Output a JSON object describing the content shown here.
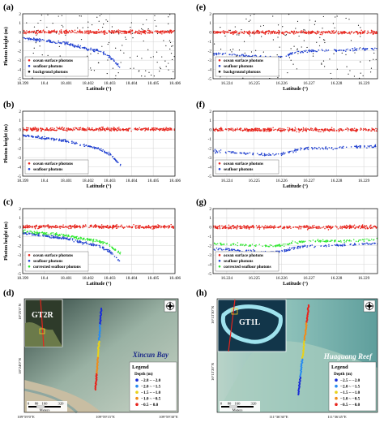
{
  "chart_data": [
    {
      "panel": "(a)",
      "type": "scatter",
      "ylabel": "Photon height (m)",
      "xlabel": "Latitude (°)",
      "xlim": [
        18.399,
        18.406
      ],
      "ylim": [
        -5,
        2
      ],
      "xticks": [
        "18.399",
        "18.4",
        "18.401",
        "18.402",
        "18.403",
        "18.404",
        "18.405",
        "18.406"
      ],
      "yticks": [
        "2",
        "1",
        "0",
        "-1",
        "-2",
        "-3",
        "-4",
        "-5"
      ],
      "grid": true,
      "legend_position": "bottom-left",
      "series": [
        {
          "name": "ocean surface photons",
          "color": "#e8251d",
          "kind": "surface",
          "x_range": [
            18.399,
            18.406
          ],
          "mean": 0.05
        },
        {
          "name": "seafloor photons",
          "color": "#1f3fcf",
          "kind": "seafloor",
          "points": [
            [
              18.399,
              -0.6
            ],
            [
              18.4,
              -0.9
            ],
            [
              18.401,
              -1.2
            ],
            [
              18.402,
              -1.8
            ],
            [
              18.4025,
              -2.0
            ],
            [
              18.403,
              -2.6
            ],
            [
              18.4035,
              -3.8
            ]
          ]
        },
        {
          "name": "backgroud photons",
          "color": "#111111",
          "kind": "background",
          "y_range": [
            -5,
            2
          ]
        }
      ]
    },
    {
      "panel": "(b)",
      "type": "scatter",
      "ylabel": "Photon height (m)",
      "xlabel": "Latitude (°)",
      "xlim": [
        18.399,
        18.406
      ],
      "ylim": [
        -5,
        2
      ],
      "xticks": [
        "18.399",
        "18.4",
        "18.401",
        "18.402",
        "18.403",
        "18.404",
        "18.405",
        "18.406"
      ],
      "yticks": [
        "2",
        "1",
        "0",
        "-1",
        "-2",
        "-3",
        "-4",
        "-5"
      ],
      "grid": true,
      "legend_position": "bottom-left",
      "series": [
        {
          "name": "ocean surface photons",
          "color": "#e8251d",
          "kind": "surface",
          "x_range": [
            18.399,
            18.406
          ],
          "mean": 0.05
        },
        {
          "name": "seafloor photons",
          "color": "#1f3fcf",
          "kind": "seafloor",
          "points": [
            [
              18.399,
              -0.6
            ],
            [
              18.4,
              -0.9
            ],
            [
              18.401,
              -1.2
            ],
            [
              18.402,
              -1.8
            ],
            [
              18.4025,
              -2.0
            ],
            [
              18.403,
              -2.6
            ],
            [
              18.4035,
              -3.8
            ]
          ]
        }
      ]
    },
    {
      "panel": "(c)",
      "type": "scatter",
      "ylabel": "Photon height (m)",
      "xlabel": "Latitude (°)",
      "xlim": [
        18.399,
        18.406
      ],
      "ylim": [
        -5,
        2
      ],
      "xticks": [
        "18.399",
        "18.4",
        "18.401",
        "18.402",
        "18.403",
        "18.404",
        "18.405",
        "18.406"
      ],
      "yticks": [
        "2",
        "1",
        "0",
        "-1",
        "-2",
        "-3",
        "-4",
        "-5"
      ],
      "grid": true,
      "legend_position": "bottom-left",
      "series": [
        {
          "name": "ocean surface photons",
          "color": "#e8251d",
          "kind": "surface",
          "x_range": [
            18.399,
            18.406
          ],
          "mean": 0.05
        },
        {
          "name": "seafloor photons",
          "color": "#1f3fcf",
          "kind": "seafloor",
          "points": [
            [
              18.399,
              -0.6
            ],
            [
              18.4,
              -0.9
            ],
            [
              18.401,
              -1.2
            ],
            [
              18.402,
              -1.8
            ],
            [
              18.4025,
              -2.0
            ],
            [
              18.403,
              -2.6
            ],
            [
              18.4035,
              -3.8
            ]
          ]
        },
        {
          "name": "corrected seafloor photons",
          "color": "#2ee82e",
          "kind": "corrected",
          "points": [
            [
              18.399,
              -0.45
            ],
            [
              18.4,
              -0.68
            ],
            [
              18.401,
              -0.9
            ],
            [
              18.402,
              -1.35
            ],
            [
              18.4025,
              -1.5
            ],
            [
              18.403,
              -1.95
            ],
            [
              18.4035,
              -2.85
            ]
          ]
        }
      ]
    },
    {
      "panel": "(e)",
      "type": "scatter",
      "ylabel": "",
      "xlabel": "Latitude (°)",
      "xlim": [
        16.2235,
        16.2295
      ],
      "ylim": [
        -5,
        2
      ],
      "xticks": [
        "16.224",
        "16.225",
        "16.226",
        "16.227",
        "16.228",
        "16.229"
      ],
      "yticks": [
        "2",
        "1",
        "0",
        "-1",
        "-2",
        "-3",
        "-4",
        "-5"
      ],
      "grid": true,
      "legend_position": "bottom-left",
      "series": [
        {
          "name": "ocean surface photons",
          "color": "#e8251d",
          "kind": "surface",
          "x_range": [
            16.2235,
            16.2295
          ],
          "mean": 0.0
        },
        {
          "name": "seafloor photons",
          "color": "#1f3fcf",
          "kind": "seafloor",
          "points": [
            [
              16.2235,
              -2.3
            ],
            [
              16.2245,
              -2.5
            ],
            [
              16.2255,
              -2.7
            ],
            [
              16.226,
              -2.6
            ],
            [
              16.2265,
              -2.2
            ],
            [
              16.227,
              -2.0
            ],
            [
              16.228,
              -1.95
            ],
            [
              16.229,
              -1.8
            ],
            [
              16.2295,
              -1.75
            ]
          ]
        },
        {
          "name": "background photons",
          "color": "#111111",
          "kind": "background",
          "y_range": [
            -5,
            2
          ]
        }
      ]
    },
    {
      "panel": "(f)",
      "type": "scatter",
      "ylabel": "",
      "xlabel": "Latitude (°)",
      "xlim": [
        16.2235,
        16.2295
      ],
      "ylim": [
        -5,
        2
      ],
      "xticks": [
        "16.224",
        "16.225",
        "16.226",
        "16.227",
        "16.228",
        "16.229"
      ],
      "yticks": [
        "2",
        "1",
        "0",
        "-1",
        "-2",
        "-3",
        "-4",
        "-5"
      ],
      "grid": true,
      "legend_position": "bottom-left",
      "series": [
        {
          "name": "ocean surface photons",
          "color": "#e8251d",
          "kind": "surface",
          "x_range": [
            16.2235,
            16.2295
          ],
          "mean": 0.0
        },
        {
          "name": "seafloor photons",
          "color": "#1f3fcf",
          "kind": "seafloor",
          "points": [
            [
              16.2235,
              -2.3
            ],
            [
              16.2245,
              -2.5
            ],
            [
              16.2255,
              -2.7
            ],
            [
              16.226,
              -2.6
            ],
            [
              16.2265,
              -2.2
            ],
            [
              16.227,
              -2.0
            ],
            [
              16.228,
              -1.95
            ],
            [
              16.229,
              -1.8
            ],
            [
              16.2295,
              -1.75
            ]
          ]
        }
      ]
    },
    {
      "panel": "(g)",
      "type": "scatter",
      "ylabel": "",
      "xlabel": "Latitude (°)",
      "xlim": [
        16.2235,
        16.2295
      ],
      "ylim": [
        -5,
        2
      ],
      "xticks": [
        "16.224",
        "16.225",
        "16.226",
        "16.227",
        "16.228",
        "16.229"
      ],
      "yticks": [
        "2",
        "1",
        "0",
        "-1",
        "-2",
        "-3",
        "-4",
        "-5"
      ],
      "grid": true,
      "legend_position": "bottom-left",
      "series": [
        {
          "name": "ocean surface photons",
          "color": "#e8251d",
          "kind": "surface",
          "x_range": [
            16.2235,
            16.2295
          ],
          "mean": 0.0
        },
        {
          "name": "seafloor photons",
          "color": "#1f3fcf",
          "kind": "seafloor",
          "points": [
            [
              16.2235,
              -2.3
            ],
            [
              16.2245,
              -2.5
            ],
            [
              16.2255,
              -2.7
            ],
            [
              16.226,
              -2.6
            ],
            [
              16.2265,
              -2.2
            ],
            [
              16.227,
              -2.0
            ],
            [
              16.228,
              -1.95
            ],
            [
              16.229,
              -1.8
            ],
            [
              16.2295,
              -1.75
            ]
          ]
        },
        {
          "name": "corrected seafloor photons",
          "color": "#2ee82e",
          "kind": "corrected",
          "points": [
            [
              16.2235,
              -1.75
            ],
            [
              16.2245,
              -1.9
            ],
            [
              16.2255,
              -2.05
            ],
            [
              16.226,
              -1.95
            ],
            [
              16.2265,
              -1.65
            ],
            [
              16.227,
              -1.5
            ],
            [
              16.228,
              -1.48
            ],
            [
              16.229,
              -1.38
            ],
            [
              16.2295,
              -1.32
            ]
          ]
        }
      ]
    }
  ],
  "maps": [
    {
      "panel": "(d)",
      "inset_label": "GT2R",
      "place": "Xincun Bay",
      "legend_title": "Legend",
      "legend_sub": "Depth (m)",
      "legend_items": [
        {
          "label": "−2.8 ~ −2.0",
          "color": "#1b2fd6"
        },
        {
          "label": "−2.0 ~ −1.5",
          "color": "#2a8cf0"
        },
        {
          "label": "−1.5 ~ −1.0",
          "color": "#e8d21a"
        },
        {
          "label": "−1.0 ~ −0.5",
          "color": "#f08c1a"
        },
        {
          "label": "−0.5 ~ 0.0",
          "color": "#e8251d"
        }
      ],
      "lat_labels": [
        "18°25′0″N",
        "18°24′0″N"
      ],
      "lon_labels": [
        "109°59′0″E",
        "109°59′15″E",
        "109°59′30″E"
      ],
      "scale_labels": [
        "0",
        "80",
        "160",
        "320"
      ],
      "scale_unit": "Meters"
    },
    {
      "panel": "(h)",
      "inset_label": "GT1L",
      "place": "Huaguang Reef",
      "legend_title": "Legend",
      "legend_sub": "Depth (m)",
      "legend_items": [
        {
          "label": "−2.5 ~ −2.0",
          "color": "#1b2fd6"
        },
        {
          "label": "−2.0 ~ −1.5",
          "color": "#2a8cf0"
        },
        {
          "label": "−1.5 ~ −1.0",
          "color": "#e8d21a"
        },
        {
          "label": "−1.0 ~ −0.5",
          "color": "#f08c1a"
        },
        {
          "label": "−0.5 ~ −0.0",
          "color": "#e8251d"
        }
      ],
      "lat_labels": [
        "16°13′30″N",
        "16°13′20″N"
      ],
      "lon_labels": [
        "111°36′30″E",
        "111°36′45″E"
      ],
      "scale_labels": [
        "0",
        "80",
        "160",
        "320"
      ],
      "scale_unit": "Meters"
    }
  ]
}
